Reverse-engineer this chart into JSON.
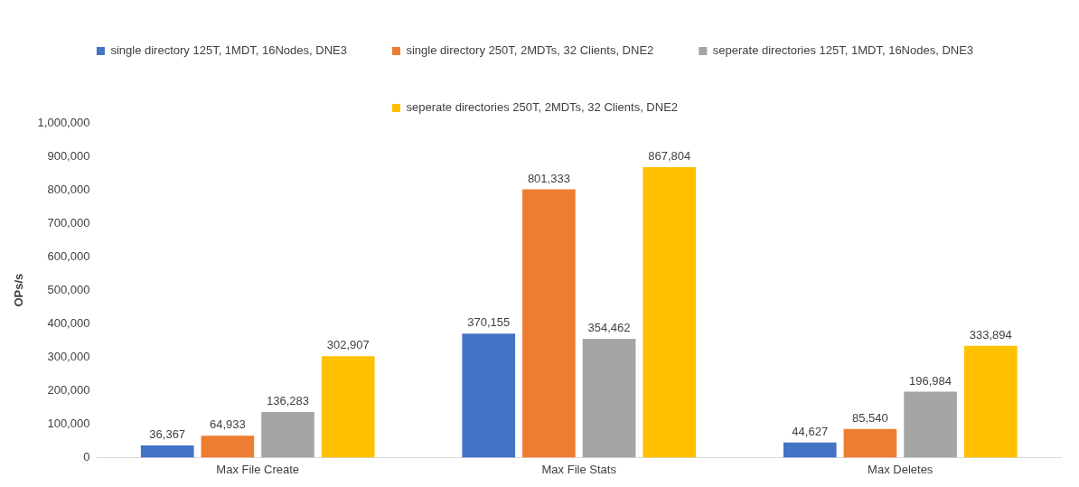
{
  "chart_data": {
    "type": "bar",
    "ylabel": "OPs/s",
    "categories": [
      "Max File Create",
      "Max File Stats",
      "Max Deletes"
    ],
    "series": [
      {
        "name": "single directory 125T, 1MDT, 16Nodes, DNE3",
        "color": "#4472c4",
        "values": [
          36367,
          370155,
          44627
        ],
        "value_labels": [
          "36,367",
          "370,155",
          "44,627"
        ]
      },
      {
        "name": "single directory 250T, 2MDTs, 32 Clients, DNE2",
        "color": "#ed7d31",
        "values": [
          64933,
          801333,
          85540
        ],
        "value_labels": [
          "64,933",
          "801,333",
          "85,540"
        ]
      },
      {
        "name": "seperate directories 125T, 1MDT, 16Nodes, DNE3",
        "color": "#a5a5a5",
        "values": [
          136283,
          354462,
          196984
        ],
        "value_labels": [
          "136,283",
          "354,462",
          "196,984"
        ]
      },
      {
        "name": "seperate directories 250T, 2MDTs, 32 Clients, DNE2",
        "color": "#ffc000",
        "values": [
          302907,
          867804,
          333894
        ],
        "value_labels": [
          "302,907",
          "867,804",
          "333,894"
        ]
      }
    ],
    "ylim": [
      0,
      1000000
    ],
    "yticks": [
      0,
      {
        "value": 100000,
        "label": "100,000"
      },
      {
        "value": 200000,
        "label": "200,000"
      },
      {
        "value": 300000,
        "label": "300,000"
      },
      {
        "value": 400000,
        "label": "400,000"
      },
      {
        "value": 500000,
        "label": "500,000"
      },
      {
        "value": 600000,
        "label": "600,000"
      },
      {
        "value": 700000,
        "label": "700,000"
      },
      {
        "value": 800000,
        "label": "800,000"
      },
      {
        "value": 900000,
        "label": "900,000"
      },
      {
        "value": 1000000,
        "label": "1,000,000"
      }
    ],
    "grid": false,
    "legend": "top"
  }
}
